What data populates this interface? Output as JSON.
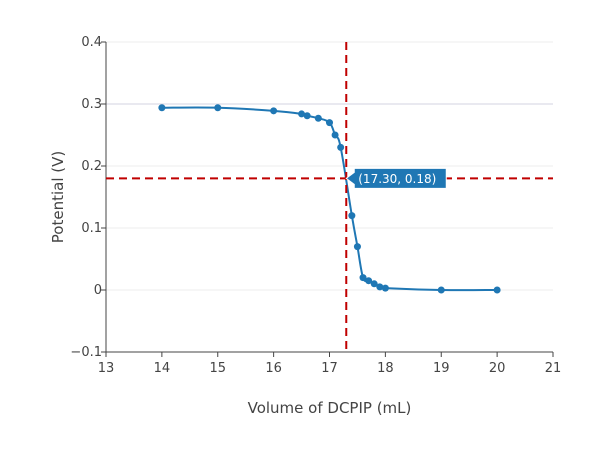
{
  "chart_data": {
    "type": "line",
    "xlabel": "Volume of DCPIP (mL)",
    "ylabel": "Potential (V)",
    "xlim": [
      13,
      21
    ],
    "ylim": [
      -0.1,
      0.4
    ],
    "x_ticks": [
      13,
      14,
      15,
      16,
      17,
      18,
      19,
      20,
      21
    ],
    "y_ticks": [
      -0.1,
      0,
      0.1,
      0.2,
      0.3,
      0.4
    ],
    "x_tick_labels": [
      "13",
      "14",
      "15",
      "16",
      "17",
      "18",
      "19",
      "20",
      "21"
    ],
    "y_tick_labels": [
      "−0.1",
      "0",
      "0.1",
      "0.2",
      "0.3",
      "0.4"
    ],
    "grid": true,
    "series": [
      {
        "color": "#1f77b4",
        "x": [
          14,
          15,
          16,
          16.5,
          16.6,
          16.8,
          17,
          17.1,
          17.2,
          17.4,
          17.5,
          17.6,
          17.7,
          17.8,
          17.9,
          18,
          19,
          20
        ],
        "y": [
          0.294,
          0.294,
          0.289,
          0.284,
          0.281,
          0.277,
          0.27,
          0.25,
          0.23,
          0.12,
          0.07,
          0.02,
          0.015,
          0.01,
          0.005,
          0.003,
          0,
          0
        ]
      }
    ],
    "reference_lines": {
      "color": "#c00000",
      "x": 17.3,
      "y": 0.18
    },
    "annotation": {
      "text": "(17.30, 0.18)",
      "x": 17.3,
      "y": 0.18,
      "background": "#1f77b4"
    }
  }
}
